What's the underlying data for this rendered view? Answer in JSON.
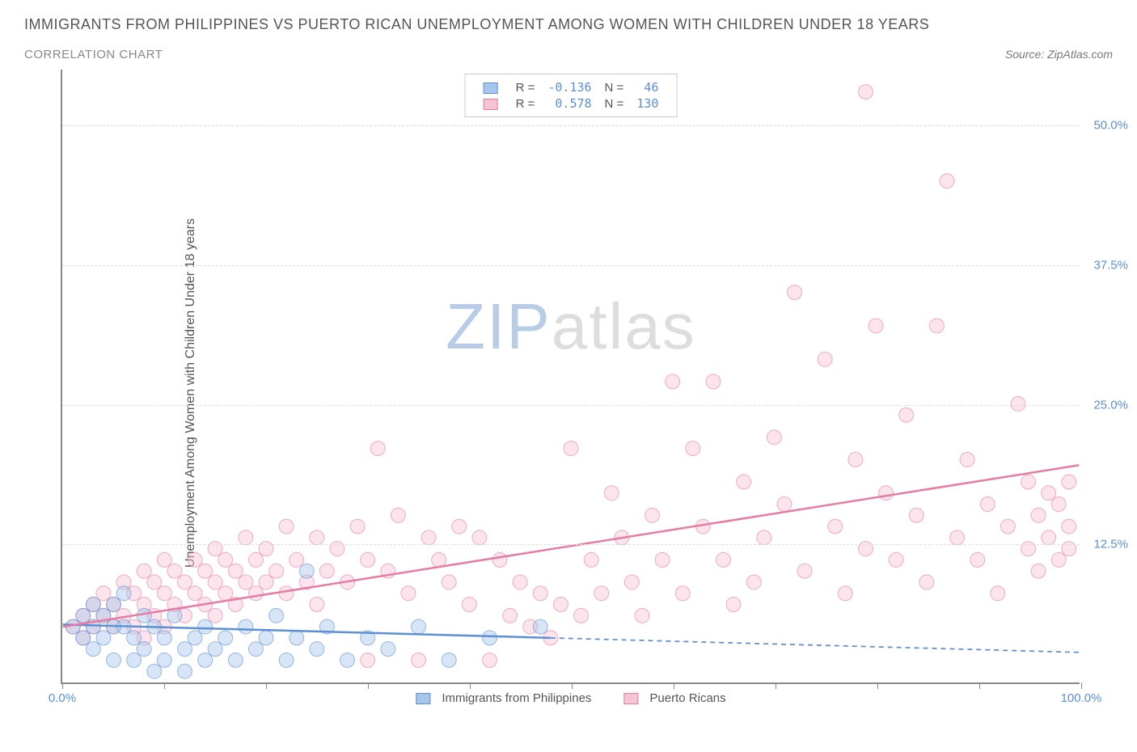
{
  "title": "IMMIGRANTS FROM PHILIPPINES VS PUERTO RICAN UNEMPLOYMENT AMONG WOMEN WITH CHILDREN UNDER 18 YEARS",
  "subtitle": "CORRELATION CHART",
  "source": "Source: ZipAtlas.com",
  "ylabel": "Unemployment Among Women with Children Under 18 years",
  "watermark": {
    "part1": "ZIP",
    "part2": "atlas"
  },
  "chart": {
    "type": "scatter",
    "xlim": [
      0,
      100
    ],
    "ylim": [
      0,
      55
    ],
    "x_ticks": [
      0,
      10,
      20,
      30,
      40,
      50,
      60,
      70,
      80,
      90,
      100
    ],
    "x_tick_labels_visible": {
      "0": "0.0%",
      "100": "100.0%"
    },
    "y_gridlines": [
      12.5,
      25.0,
      37.5,
      50.0
    ],
    "y_tick_labels": [
      "12.5%",
      "25.0%",
      "37.5%",
      "50.0%"
    ],
    "grid_color": "#dddddd",
    "axis_color": "#888888",
    "tick_label_color": "#5b8fd6",
    "background_color": "#ffffff",
    "marker_radius": 9,
    "marker_opacity": 0.45,
    "trendline_width": 2.5,
    "series": [
      {
        "name": "Immigrants from Philippines",
        "color_fill": "#a8c5ec",
        "color_stroke": "#5b8fd6",
        "R": "-0.136",
        "N": "46",
        "trend": {
          "x1": 0,
          "y1": 5.2,
          "x2": 48,
          "y2": 4.0,
          "extend_x2": 100,
          "extend_y2": 2.7,
          "solid_until": 48
        },
        "points": [
          [
            1,
            5
          ],
          [
            2,
            6
          ],
          [
            2,
            4
          ],
          [
            3,
            7
          ],
          [
            3,
            5
          ],
          [
            3,
            3
          ],
          [
            4,
            6
          ],
          [
            4,
            4
          ],
          [
            5,
            7
          ],
          [
            5,
            5
          ],
          [
            5,
            2
          ],
          [
            6,
            8
          ],
          [
            6,
            5
          ],
          [
            7,
            4
          ],
          [
            7,
            2
          ],
          [
            8,
            6
          ],
          [
            8,
            3
          ],
          [
            9,
            5
          ],
          [
            9,
            1
          ],
          [
            10,
            4
          ],
          [
            10,
            2
          ],
          [
            11,
            6
          ],
          [
            12,
            3
          ],
          [
            12,
            1
          ],
          [
            13,
            4
          ],
          [
            14,
            5
          ],
          [
            14,
            2
          ],
          [
            15,
            3
          ],
          [
            16,
            4
          ],
          [
            17,
            2
          ],
          [
            18,
            5
          ],
          [
            19,
            3
          ],
          [
            20,
            4
          ],
          [
            21,
            6
          ],
          [
            22,
            2
          ],
          [
            23,
            4
          ],
          [
            24,
            10
          ],
          [
            25,
            3
          ],
          [
            26,
            5
          ],
          [
            28,
            2
          ],
          [
            30,
            4
          ],
          [
            32,
            3
          ],
          [
            35,
            5
          ],
          [
            38,
            2
          ],
          [
            42,
            4
          ],
          [
            47,
            5
          ]
        ]
      },
      {
        "name": "Puerto Ricans",
        "color_fill": "#f6c4d2",
        "color_stroke": "#e87ba3",
        "R": "0.578",
        "N": "130",
        "trend": {
          "x1": 0,
          "y1": 5.0,
          "x2": 100,
          "y2": 19.5,
          "solid_until": 100
        },
        "points": [
          [
            1,
            5
          ],
          [
            2,
            6
          ],
          [
            2,
            4
          ],
          [
            3,
            7
          ],
          [
            3,
            5
          ],
          [
            4,
            8
          ],
          [
            4,
            6
          ],
          [
            5,
            7
          ],
          [
            5,
            5
          ],
          [
            6,
            9
          ],
          [
            6,
            6
          ],
          [
            7,
            8
          ],
          [
            7,
            5
          ],
          [
            8,
            10
          ],
          [
            8,
            7
          ],
          [
            8,
            4
          ],
          [
            9,
            9
          ],
          [
            9,
            6
          ],
          [
            10,
            11
          ],
          [
            10,
            8
          ],
          [
            10,
            5
          ],
          [
            11,
            10
          ],
          [
            11,
            7
          ],
          [
            12,
            9
          ],
          [
            12,
            6
          ],
          [
            13,
            11
          ],
          [
            13,
            8
          ],
          [
            14,
            10
          ],
          [
            14,
            7
          ],
          [
            15,
            12
          ],
          [
            15,
            9
          ],
          [
            15,
            6
          ],
          [
            16,
            11
          ],
          [
            16,
            8
          ],
          [
            17,
            10
          ],
          [
            17,
            7
          ],
          [
            18,
            13
          ],
          [
            18,
            9
          ],
          [
            19,
            11
          ],
          [
            19,
            8
          ],
          [
            20,
            12
          ],
          [
            20,
            9
          ],
          [
            21,
            10
          ],
          [
            22,
            14
          ],
          [
            22,
            8
          ],
          [
            23,
            11
          ],
          [
            24,
            9
          ],
          [
            25,
            13
          ],
          [
            25,
            7
          ],
          [
            26,
            10
          ],
          [
            27,
            12
          ],
          [
            28,
            9
          ],
          [
            29,
            14
          ],
          [
            30,
            11
          ],
          [
            30,
            2
          ],
          [
            31,
            21
          ],
          [
            32,
            10
          ],
          [
            33,
            15
          ],
          [
            34,
            8
          ],
          [
            35,
            2
          ],
          [
            36,
            13
          ],
          [
            37,
            11
          ],
          [
            38,
            9
          ],
          [
            39,
            14
          ],
          [
            40,
            7
          ],
          [
            41,
            13
          ],
          [
            42,
            2
          ],
          [
            43,
            11
          ],
          [
            44,
            6
          ],
          [
            45,
            9
          ],
          [
            46,
            5
          ],
          [
            47,
            8
          ],
          [
            48,
            4
          ],
          [
            49,
            7
          ],
          [
            50,
            21
          ],
          [
            51,
            6
          ],
          [
            52,
            11
          ],
          [
            53,
            8
          ],
          [
            54,
            17
          ],
          [
            55,
            13
          ],
          [
            56,
            9
          ],
          [
            57,
            6
          ],
          [
            58,
            15
          ],
          [
            59,
            11
          ],
          [
            60,
            27
          ],
          [
            61,
            8
          ],
          [
            62,
            21
          ],
          [
            63,
            14
          ],
          [
            64,
            27
          ],
          [
            65,
            11
          ],
          [
            66,
            7
          ],
          [
            67,
            18
          ],
          [
            68,
            9
          ],
          [
            69,
            13
          ],
          [
            70,
            22
          ],
          [
            71,
            16
          ],
          [
            72,
            35
          ],
          [
            73,
            10
          ],
          [
            75,
            29
          ],
          [
            76,
            14
          ],
          [
            77,
            8
          ],
          [
            78,
            20
          ],
          [
            79,
            12
          ],
          [
            79,
            53
          ],
          [
            80,
            32
          ],
          [
            81,
            17
          ],
          [
            82,
            11
          ],
          [
            83,
            24
          ],
          [
            84,
            15
          ],
          [
            85,
            9
          ],
          [
            86,
            32
          ],
          [
            87,
            45
          ],
          [
            88,
            13
          ],
          [
            89,
            20
          ],
          [
            90,
            11
          ],
          [
            91,
            16
          ],
          [
            92,
            8
          ],
          [
            93,
            14
          ],
          [
            94,
            25
          ],
          [
            95,
            12
          ],
          [
            95,
            18
          ],
          [
            96,
            10
          ],
          [
            96,
            15
          ],
          [
            97,
            13
          ],
          [
            97,
            17
          ],
          [
            98,
            11
          ],
          [
            98,
            16
          ],
          [
            99,
            14
          ],
          [
            99,
            18
          ],
          [
            99,
            12
          ]
        ]
      }
    ],
    "legend_top": {
      "R_label": "R =",
      "N_label": "N ="
    }
  }
}
